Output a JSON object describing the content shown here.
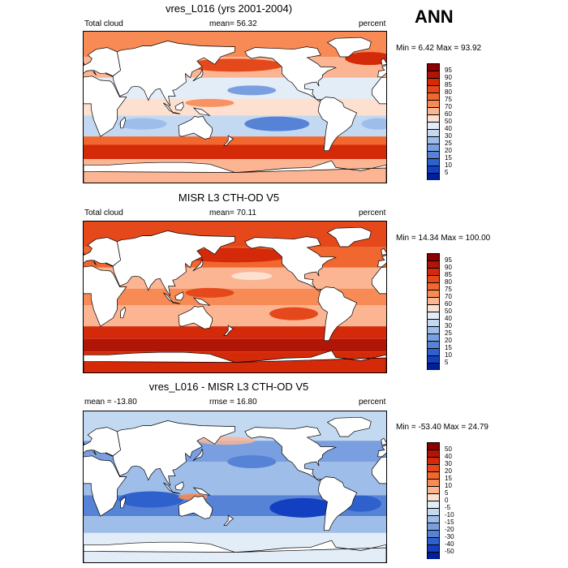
{
  "header": {
    "season": "ANN"
  },
  "panels": [
    {
      "title": "vres_L016 (yrs 2001-2004)",
      "left_label": "Total cloud",
      "center_label": "mean=  56.32",
      "right_label": "percent",
      "minmax": "Min =   6.42 Max =  93.92",
      "colorbar": {
        "labels": [
          "95",
          "90",
          "85",
          "80",
          "75",
          "70",
          "60",
          "50",
          "40",
          "30",
          "25",
          "20",
          "15",
          "10",
          "5"
        ],
        "colors": [
          "#8b0000",
          "#b01505",
          "#d42a0a",
          "#e5481b",
          "#f0672f",
          "#f78a55",
          "#fbb593",
          "#fde0d0",
          "#e3edf8",
          "#c3d8f1",
          "#9ebde9",
          "#7a9fe0",
          "#5683d6",
          "#2e61cc",
          "#1240c0",
          "#001f99"
        ]
      },
      "style": "model"
    },
    {
      "title": "MISR L3 CTH-OD V5",
      "left_label": "Total cloud",
      "center_label": "mean=  70.11",
      "right_label": "percent",
      "minmax": "Min =  14.34 Max = 100.00",
      "colorbar": {
        "labels": [
          "95",
          "90",
          "85",
          "80",
          "75",
          "70",
          "60",
          "50",
          "40",
          "30",
          "25",
          "20",
          "15",
          "10",
          "5"
        ],
        "colors": [
          "#8b0000",
          "#b01505",
          "#d42a0a",
          "#e5481b",
          "#f0672f",
          "#f78a55",
          "#fbb593",
          "#fde0d0",
          "#e3edf8",
          "#c3d8f1",
          "#9ebde9",
          "#7a9fe0",
          "#5683d6",
          "#2e61cc",
          "#1240c0",
          "#001f99"
        ]
      },
      "style": "obs"
    },
    {
      "title": "vres_L016 - MISR L3 CTH-OD V5",
      "left_label": "mean = -13.80",
      "center_label": "rmse =  16.80",
      "right_label": "percent",
      "minmax": "Min = -53.40 Max =  24.79",
      "colorbar": {
        "labels": [
          "50",
          "40",
          "30",
          "20",
          "15",
          "10",
          "5",
          "0",
          "-5",
          "-10",
          "-15",
          "-20",
          "-30",
          "-40",
          "-50"
        ],
        "colors": [
          "#8b0000",
          "#b01505",
          "#d42a0a",
          "#e5481b",
          "#f0672f",
          "#f78a55",
          "#fbb593",
          "#fde0d0",
          "#e3edf8",
          "#c3d8f1",
          "#9ebde9",
          "#7a9fe0",
          "#5683d6",
          "#2e61cc",
          "#1240c0",
          "#001f99"
        ]
      },
      "style": "diff"
    }
  ]
}
